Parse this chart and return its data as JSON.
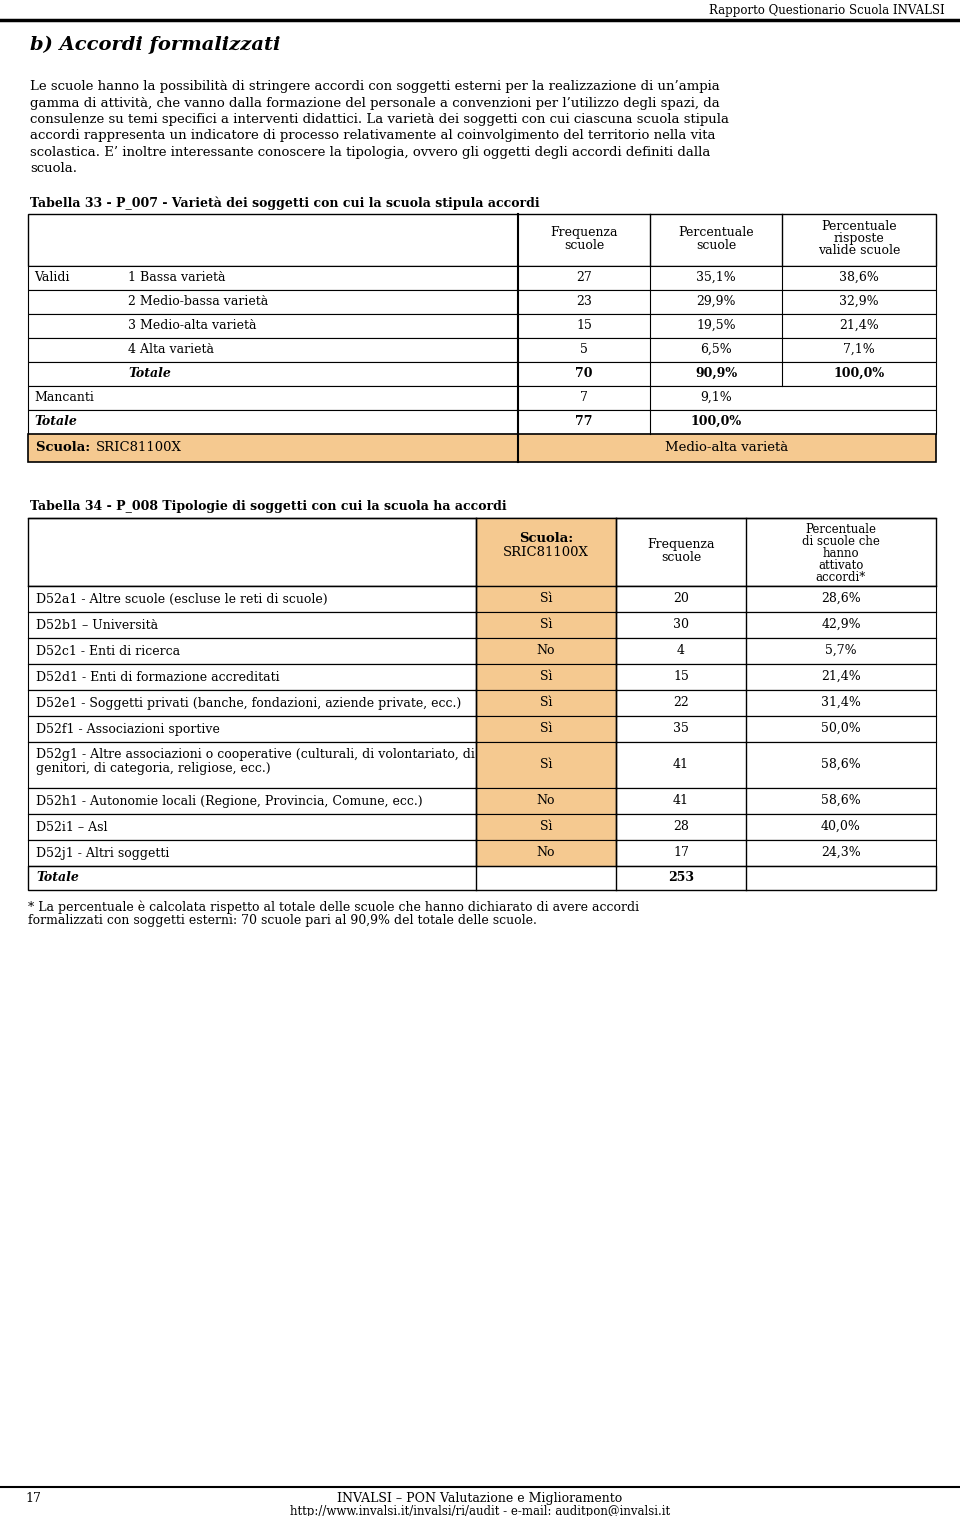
{
  "header_text": "Rapporto Questionario Scuola INVALSI",
  "title": "b) Accordi formalizzati",
  "intro_lines": [
    "Le scuole hanno la possibilità di stringere accordi con soggetti esterni per la realizzazione di un’ampia",
    "gamma di attività, che vanno dalla formazione del personale a convenzioni per l’utilizzo degli spazi, da",
    "consulenze su temi specifici a interventi didattici. La varietà dei soggetti con cui ciascuna scuola stipula",
    "accordi rappresenta un indicatore di processo relativamente al coinvolgimento del territorio nella vita",
    "scolastica. E’ inoltre interessante conoscere la tipologia, ovvero gli oggetti degli accordi definiti dalla",
    "scuola."
  ],
  "table1_title": "Tabella 33 - P_007 - Varietà dei soggetti con cui la scuola stipula accordi",
  "table1_rows": [
    {
      "group": "Validi",
      "label": "1 Bassa varietà",
      "freq": "27",
      "perc": "35,1%",
      "perc_valid": "38,6%",
      "bold": false
    },
    {
      "group": "",
      "label": "2 Medio-bassa varietà",
      "freq": "23",
      "perc": "29,9%",
      "perc_valid": "32,9%",
      "bold": false
    },
    {
      "group": "",
      "label": "3 Medio-alta varietà",
      "freq": "15",
      "perc": "19,5%",
      "perc_valid": "21,4%",
      "bold": false
    },
    {
      "group": "",
      "label": "4 Alta varietà",
      "freq": "5",
      "perc": "6,5%",
      "perc_valid": "7,1%",
      "bold": false
    },
    {
      "group": "",
      "label": "Totale",
      "freq": "70",
      "perc": "90,9%",
      "perc_valid": "100,0%",
      "bold": true
    }
  ],
  "table1_mancanti": {
    "label": "Mancanti",
    "freq": "7",
    "perc": "9,1%"
  },
  "table1_totale": {
    "label": "Totale",
    "freq": "77",
    "perc": "100,0%"
  },
  "table1_scuola_label": "Scuola:",
  "table1_scuola_code": "SRIC81100X",
  "table1_scuola_value": "Medio-alta varietà",
  "table2_title": "Tabella 34 - P_008 Tipologie di soggetti con cui la scuola ha accordi",
  "table2_rows": [
    {
      "label": "D52a1 - Altre scuole (escluse le reti di scuole)",
      "scuola": "Sì",
      "freq": "20",
      "perc": "28,6%",
      "two_lines": false
    },
    {
      "label": "D52b1 – Università",
      "scuola": "Sì",
      "freq": "30",
      "perc": "42,9%",
      "two_lines": false
    },
    {
      "label": "D52c1 - Enti di ricerca",
      "scuola": "No",
      "freq": "4",
      "perc": "5,7%",
      "two_lines": false
    },
    {
      "label": "D52d1 - Enti di formazione accreditati",
      "scuola": "Sì",
      "freq": "15",
      "perc": "21,4%",
      "two_lines": false
    },
    {
      "label": "D52e1 - Soggetti privati (banche, fondazioni, aziende private, ecc.)",
      "scuola": "Sì",
      "freq": "22",
      "perc": "31,4%",
      "two_lines": false
    },
    {
      "label": "D52f1 - Associazioni sportive",
      "scuola": "Sì",
      "freq": "35",
      "perc": "50,0%",
      "two_lines": false
    },
    {
      "label_line1": "D52g1 - Altre associazioni o cooperative (culturali, di volontariato, di",
      "label_line2": "genitori, di categoria, religiose, ecc.)",
      "label": "D52g1 - Altre associazioni o cooperative (culturali, di volontariato, di genitori, di categoria, religiose, ecc.)",
      "scuola": "Sì",
      "freq": "41",
      "perc": "58,6%",
      "two_lines": true
    },
    {
      "label": "D52h1 - Autonomie locali (Regione, Provincia, Comune, ecc.)",
      "scuola": "No",
      "freq": "41",
      "perc": "58,6%",
      "two_lines": false
    },
    {
      "label": "D52i1 – Asl",
      "scuola": "Sì",
      "freq": "28",
      "perc": "40,0%",
      "two_lines": false
    },
    {
      "label": "D52j1 - Altri soggetti",
      "scuola": "No",
      "freq": "17",
      "perc": "24,3%",
      "two_lines": false
    }
  ],
  "table2_totale_freq": "253",
  "footnote_line1": "* La percentuale è calcolata rispetto al totale delle scuole che hanno dichiarato di avere accordi",
  "footnote_line2": "formalizzati con soggetti esterni: 70 scuole pari al 90,9% del totale delle scuole.",
  "footer_line1": "INVALSI – PON Valutazione e Miglioramento",
  "footer_line2": "http://www.invalsi.it/invalsi/ri/audit - e-mail: auditpon@invalsi.it",
  "page_number": "17",
  "orange": "#F5C990",
  "white": "#FFFFFF",
  "black": "#000000"
}
